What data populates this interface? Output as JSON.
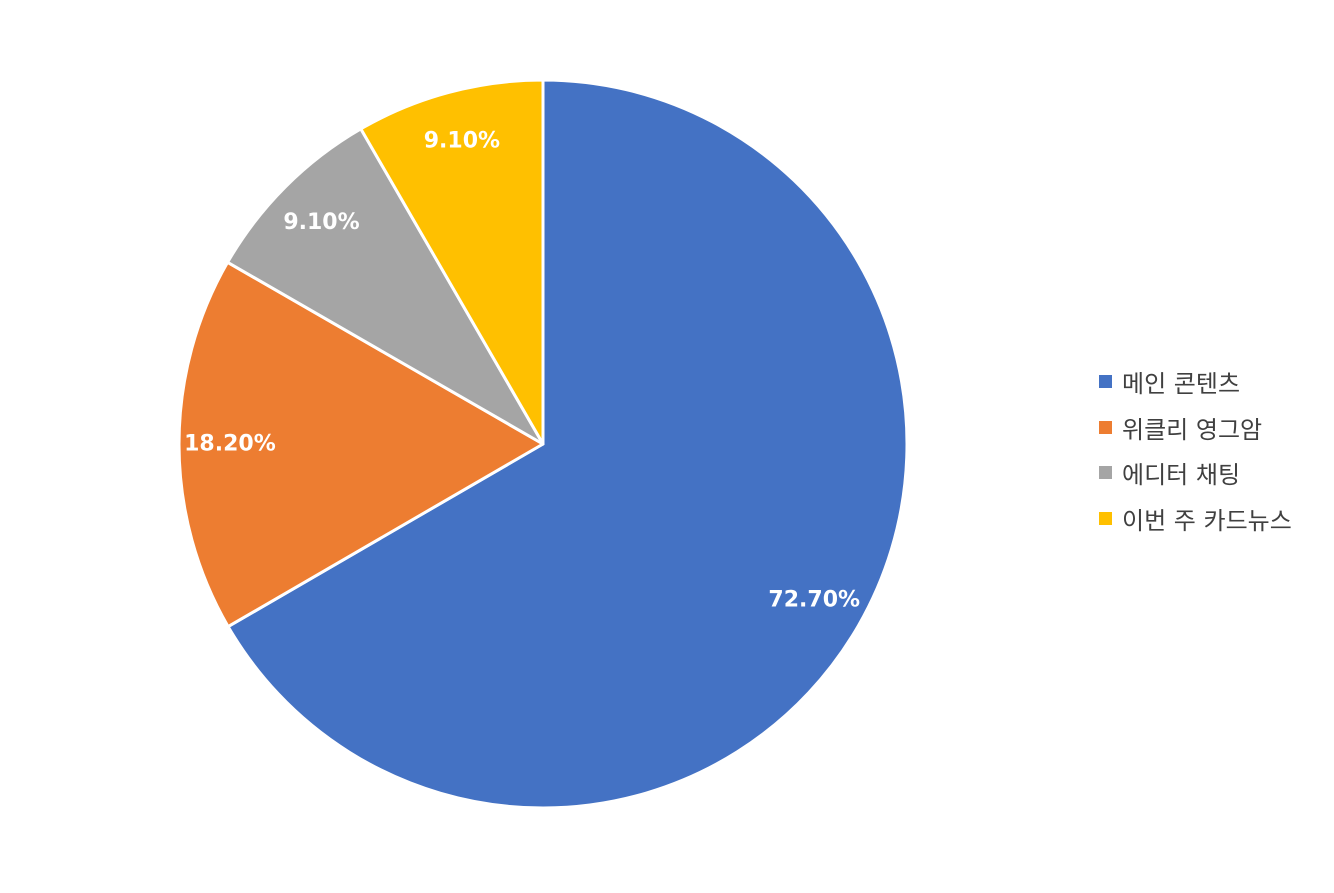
{
  "chart_data": {
    "type": "pie",
    "categories": [
      "메인 콘텐츠",
      "위클리 영그암",
      "에디터 채팅",
      "이번 주 카드뉴스"
    ],
    "values": [
      72.7,
      18.2,
      9.1,
      9.1
    ],
    "data_labels": [
      "72.70%",
      "18.20%",
      "9.10%",
      "9.10%"
    ],
    "colors": [
      "#4472C4",
      "#ED7D31",
      "#A5A5A5",
      "#FFC000"
    ],
    "start": "12 o'clock",
    "direction": "clockwise",
    "legend_position": "right"
  }
}
